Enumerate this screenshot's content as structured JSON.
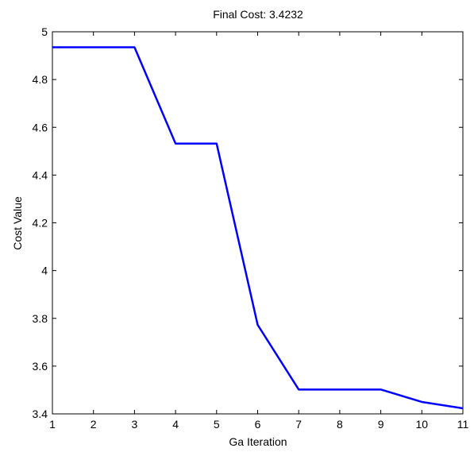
{
  "chart_data": {
    "type": "line",
    "title": "Final Cost: 3.4232",
    "xlabel": "Ga Iteration",
    "ylabel": "Cost Value",
    "xlim": [
      1,
      11
    ],
    "ylim": [
      3.4,
      5
    ],
    "xticks": [
      1,
      2,
      3,
      4,
      5,
      6,
      7,
      8,
      9,
      10,
      11
    ],
    "yticks": [
      3.4,
      3.6,
      3.8,
      4,
      4.2,
      4.4,
      4.6,
      4.8,
      5
    ],
    "xtick_labels": [
      "1",
      "2",
      "3",
      "4",
      "5",
      "6",
      "7",
      "8",
      "9",
      "10",
      "11"
    ],
    "ytick_labels": [
      "3.4",
      "3.6",
      "3.8",
      "4",
      "4.2",
      "4.4",
      "4.6",
      "4.8",
      "5"
    ],
    "grid": false,
    "line_color": "#0000ff",
    "series": [
      {
        "x": [
          1,
          2,
          3,
          4,
          5,
          6,
          7,
          8,
          9,
          10,
          11
        ],
        "values": [
          4.935,
          4.935,
          4.935,
          4.532,
          4.532,
          3.773,
          3.502,
          3.502,
          3.502,
          3.45,
          3.4232
        ]
      }
    ]
  }
}
